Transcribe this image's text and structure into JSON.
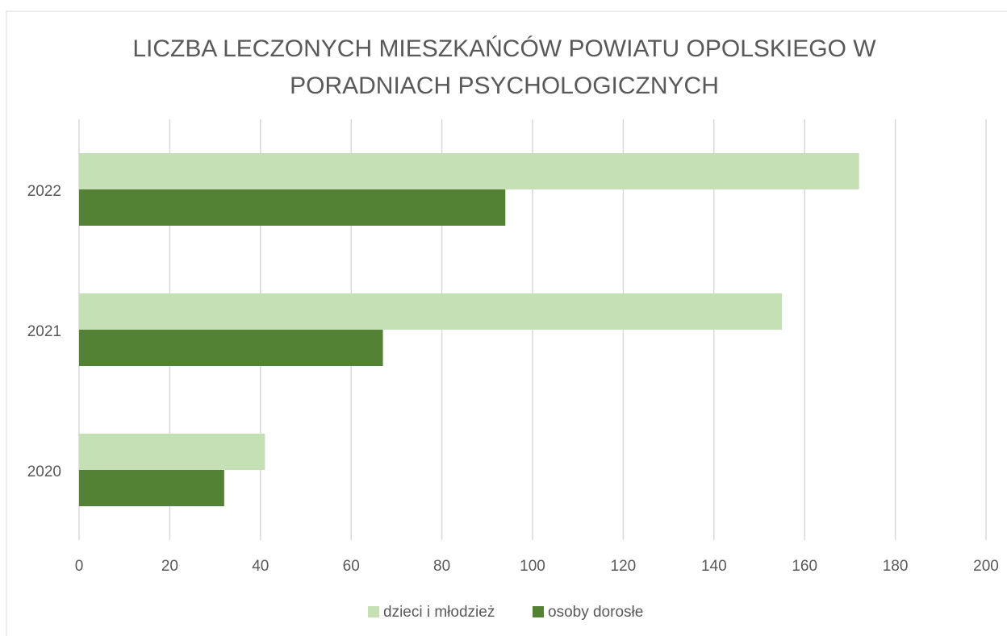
{
  "chart_data": {
    "type": "hbar",
    "title": "LICZBA LECZONYCH MIESZKAŃCÓW POWIATU OPOLSKIEGO W PORADNIACH PSYCHOLOGICZNYCH",
    "categories": [
      "2020",
      "2021",
      "2022"
    ],
    "series": [
      {
        "name": "dzieci i młodzież",
        "color": "#c5e0b4",
        "values": [
          41,
          155,
          172
        ]
      },
      {
        "name": "osoby dorosłe",
        "color": "#548235",
        "values": [
          32,
          67,
          94
        ]
      }
    ],
    "xlim": [
      0,
      200
    ],
    "xticks": [
      0,
      20,
      40,
      60,
      80,
      100,
      120,
      140,
      160,
      180,
      200
    ],
    "grid": true,
    "legend": "bottom"
  }
}
